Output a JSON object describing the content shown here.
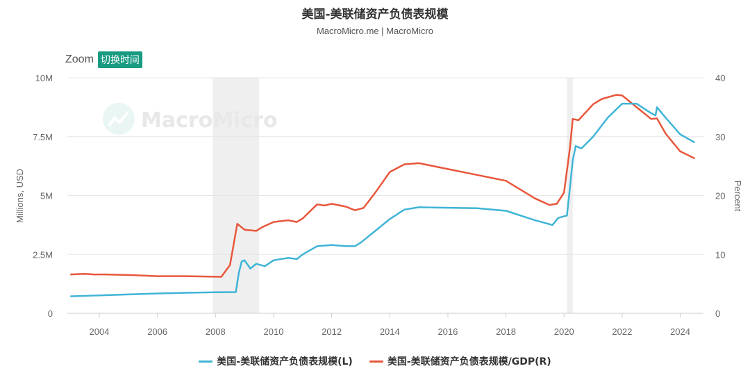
{
  "chart": {
    "title": "美国-美联储资产负债表规模",
    "subtitle": "MacroMicro.me | MacroMicro",
    "watermark": "MacroMicro"
  },
  "zoom": {
    "label": "Zoom",
    "button": "切换时间"
  },
  "colors": {
    "left_series": "#3fb4d6",
    "right_series": "#e8573c",
    "recession": "#efefef"
  },
  "chart_data": {
    "type": "line",
    "title": "美国-美联储资产负债表规模",
    "subtitle": "MacroMicro.me | MacroMicro",
    "x_ticks": [
      "2004",
      "2006",
      "2008",
      "2010",
      "2012",
      "2014",
      "2016",
      "2018",
      "2020",
      "2022",
      "2024"
    ],
    "x_range": [
      2002.9,
      2024.8
    ],
    "y_left": {
      "label": "Millions, USD",
      "range": [
        0,
        10000000
      ],
      "ticks": [
        "0",
        "2.5M",
        "5M",
        "7.5M",
        "10M"
      ]
    },
    "y_right": {
      "label": "Percent",
      "range": [
        0,
        40
      ],
      "ticks": [
        "0",
        "10",
        "20",
        "30",
        "40"
      ]
    },
    "recession_bands": [
      [
        2007.9,
        2009.5
      ],
      [
        2020.1,
        2020.3
      ]
    ],
    "grid": true,
    "legend": "bottom-center",
    "series": [
      {
        "name": "美国-美联储资产负债表规模(L)",
        "axis": "left",
        "points": [
          [
            2003.0,
            720000
          ],
          [
            2004.0,
            760000
          ],
          [
            2005.0,
            800000
          ],
          [
            2006.0,
            840000
          ],
          [
            2007.0,
            870000
          ],
          [
            2008.0,
            890000
          ],
          [
            2008.7,
            900000
          ],
          [
            2008.8,
            1700000
          ],
          [
            2008.9,
            2200000
          ],
          [
            2009.0,
            2250000
          ],
          [
            2009.2,
            1900000
          ],
          [
            2009.4,
            2100000
          ],
          [
            2009.7,
            2000000
          ],
          [
            2010.0,
            2250000
          ],
          [
            2010.5,
            2350000
          ],
          [
            2010.8,
            2300000
          ],
          [
            2011.0,
            2500000
          ],
          [
            2011.5,
            2850000
          ],
          [
            2012.0,
            2900000
          ],
          [
            2012.5,
            2850000
          ],
          [
            2012.8,
            2850000
          ],
          [
            2013.0,
            3000000
          ],
          [
            2013.5,
            3500000
          ],
          [
            2014.0,
            4000000
          ],
          [
            2014.5,
            4400000
          ],
          [
            2015.0,
            4500000
          ],
          [
            2016.0,
            4480000
          ],
          [
            2017.0,
            4460000
          ],
          [
            2018.0,
            4350000
          ],
          [
            2019.0,
            3950000
          ],
          [
            2019.6,
            3750000
          ],
          [
            2019.8,
            4050000
          ],
          [
            2020.1,
            4150000
          ],
          [
            2020.2,
            5300000
          ],
          [
            2020.3,
            6500000
          ],
          [
            2020.4,
            7100000
          ],
          [
            2020.6,
            7000000
          ],
          [
            2021.0,
            7500000
          ],
          [
            2021.5,
            8300000
          ],
          [
            2022.0,
            8900000
          ],
          [
            2022.5,
            8900000
          ],
          [
            2023.0,
            8500000
          ],
          [
            2023.15,
            8400000
          ],
          [
            2023.2,
            8750000
          ],
          [
            2023.5,
            8300000
          ],
          [
            2024.0,
            7600000
          ],
          [
            2024.5,
            7250000
          ]
        ]
      },
      {
        "name": "美国-美联储资产负债表规模/GDP(R)",
        "axis": "right",
        "points": [
          [
            2003.0,
            6.6
          ],
          [
            2003.5,
            6.7
          ],
          [
            2003.8,
            6.6
          ],
          [
            2004.2,
            6.6
          ],
          [
            2005.0,
            6.5
          ],
          [
            2005.5,
            6.4
          ],
          [
            2006.0,
            6.3
          ],
          [
            2007.0,
            6.3
          ],
          [
            2008.2,
            6.2
          ],
          [
            2008.5,
            8.2
          ],
          [
            2008.75,
            15.2
          ],
          [
            2009.0,
            14.2
          ],
          [
            2009.4,
            14.0
          ],
          [
            2009.6,
            14.6
          ],
          [
            2010.0,
            15.5
          ],
          [
            2010.5,
            15.8
          ],
          [
            2010.8,
            15.5
          ],
          [
            2011.0,
            16.1
          ],
          [
            2011.5,
            18.5
          ],
          [
            2011.75,
            18.3
          ],
          [
            2012.0,
            18.6
          ],
          [
            2012.5,
            18.1
          ],
          [
            2012.8,
            17.5
          ],
          [
            2013.1,
            17.9
          ],
          [
            2013.5,
            20.5
          ],
          [
            2014.0,
            24.0
          ],
          [
            2014.5,
            25.3
          ],
          [
            2015.0,
            25.5
          ],
          [
            2015.5,
            25.0
          ],
          [
            2016.0,
            24.5
          ],
          [
            2017.0,
            23.5
          ],
          [
            2018.0,
            22.5
          ],
          [
            2019.0,
            19.5
          ],
          [
            2019.5,
            18.4
          ],
          [
            2019.75,
            18.6
          ],
          [
            2020.0,
            20.5
          ],
          [
            2020.2,
            28.0
          ],
          [
            2020.3,
            33.0
          ],
          [
            2020.5,
            32.8
          ],
          [
            2021.0,
            35.5
          ],
          [
            2021.3,
            36.4
          ],
          [
            2021.8,
            37.1
          ],
          [
            2022.0,
            37.0
          ],
          [
            2022.5,
            35.0
          ],
          [
            2023.0,
            33.0
          ],
          [
            2023.2,
            33.1
          ],
          [
            2023.5,
            30.5
          ],
          [
            2024.0,
            27.5
          ],
          [
            2024.5,
            26.3
          ]
        ]
      }
    ]
  }
}
